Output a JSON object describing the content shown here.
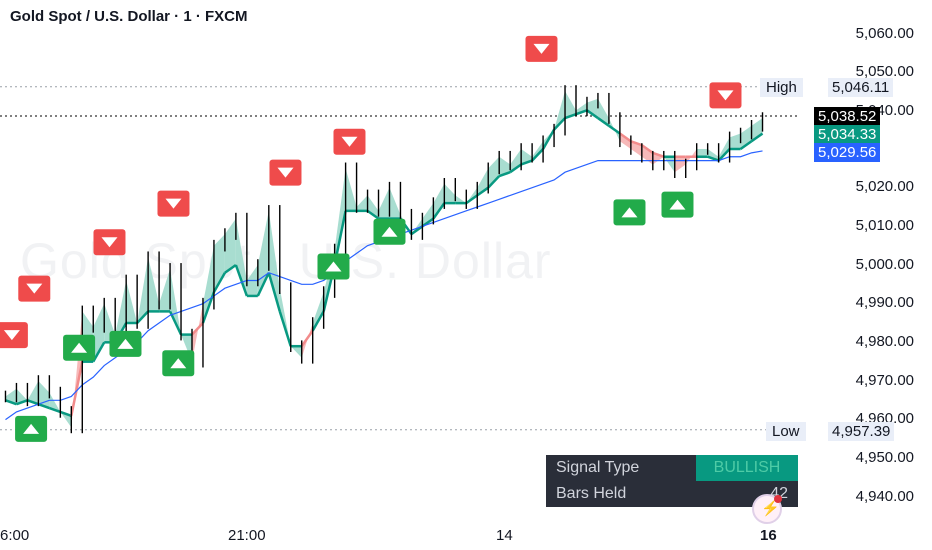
{
  "header": {
    "title": "Gold Spot / U.S. Dollar · 1 · FXCM"
  },
  "watermark": "Gold Spot · U.S. Dollar",
  "price_axis": {
    "ticks": [
      "5,060.00",
      "5,050.00",
      "5,040.00",
      "5,020.00",
      "5,010.00",
      "5,000.00",
      "4,990.00",
      "4,980.00",
      "4,970.00",
      "4,960.00",
      "4,950.00",
      "4,940.00"
    ],
    "tick_values": [
      5060,
      5050,
      5040,
      5020,
      5010,
      5000,
      4990,
      4980,
      4970,
      4960,
      4950,
      4940
    ]
  },
  "time_axis": {
    "labels": [
      "6:00",
      "21:00",
      "14",
      "16"
    ]
  },
  "price_tags": {
    "high_label": "High",
    "high_value": "5,046.11",
    "last": "5,038.52",
    "trail": "5,034.33",
    "ma": "5,029.56",
    "low_label": "Low",
    "low_value": "4,957.39"
  },
  "signal_table": {
    "type_label": "Signal Type",
    "type_value": "BULLISH",
    "bars_label": "Bars Held",
    "bars_value": "42"
  },
  "colors": {
    "up": "#22ab4a",
    "down": "#ef4b4b",
    "bull_fill": "#a8ddd0",
    "bear_fill": "#f7b9b9",
    "trail": "#089981",
    "ma": "#2962ff",
    "candle": "#000000"
  },
  "chart_data": {
    "type": "line",
    "ylim": [
      4935,
      5065
    ],
    "series": [
      {
        "values": [
          4966,
          4968,
          4965,
          4970,
          4967,
          4962,
          4958,
          4988,
          4984,
          4990,
          4982,
          4996,
          4985,
          5002,
          4990,
          4999,
          4982,
          4975,
          4990,
          5005,
          5008,
          5012,
          4996,
          5000,
          5014,
          4994,
          4979,
          4976,
          4985,
          4993,
          5004,
          5025,
          5015,
          5018,
          5014,
          5020,
          5013,
          5008,
          5012,
          5016,
          5021,
          5018,
          5016,
          5020,
          5025,
          5028,
          5026,
          5030,
          5028,
          5032,
          5035,
          5045,
          5040,
          5042,
          5043,
          5038,
          5032,
          5030,
          5028,
          5026,
          5028,
          5024,
          5026,
          5030,
          5030,
          5028,
          5033,
          5034,
          5036,
          5038
        ]
      },
      {
        "values": [
          4965,
          4964,
          4965,
          4964,
          4963,
          4962,
          4961,
          4975,
          4975,
          4980,
          4980,
          4985,
          4985,
          4988,
          4988,
          4988,
          4982,
          4982,
          4985,
          4993,
          4998,
          5000,
          4992,
          4992,
          4998,
          4988,
          4979,
          4979,
          4983,
          4988,
          5000,
          5014,
          5014,
          5014,
          5012,
          5012,
          5012,
          5008,
          5010,
          5012,
          5016,
          5016,
          5016,
          5018,
          5020,
          5023,
          5024,
          5026,
          5027,
          5030,
          5035,
          5038,
          5039,
          5040,
          5038,
          5036,
          5034,
          5032,
          5031,
          5029,
          5028,
          5028,
          5028,
          5028,
          5028,
          5027,
          5030,
          5030,
          5032,
          5034
        ]
      },
      {
        "values": [
          4960,
          4962,
          4963,
          4964,
          4965,
          4965,
          4966,
          4969,
          4971,
          4974,
          4976,
          4978,
          4980,
          4983,
          4985,
          4987,
          4988,
          4989,
          4990,
          4992,
          4994,
          4995,
          4996,
          4996,
          4998,
          4997,
          4996,
          4995,
          4995,
          4996,
          4998,
          5001,
          5003,
          5005,
          5006,
          5007,
          5008,
          5009,
          5010,
          5011,
          5012,
          5013,
          5014,
          5015,
          5016,
          5017,
          5018,
          5019,
          5020,
          5021,
          5022,
          5024,
          5025,
          5026,
          5027,
          5027,
          5027,
          5027,
          5027,
          5027,
          5027,
          5027,
          5027,
          5027,
          5027,
          5027,
          5028,
          5028,
          5029,
          5029.5
        ]
      }
    ],
    "down_markers": [
      [
        0.4,
        4978
      ],
      [
        1.8,
        4990
      ],
      [
        6.5,
        5002
      ],
      [
        10.5,
        5012
      ],
      [
        17.5,
        5020
      ],
      [
        21.5,
        5028
      ],
      [
        33.5,
        5052
      ],
      [
        45,
        5040
      ]
    ],
    "up_markers": [
      [
        1.6,
        4962
      ],
      [
        4.6,
        4983
      ],
      [
        7.5,
        4984
      ],
      [
        10.8,
        4979
      ],
      [
        20.5,
        5004
      ],
      [
        24,
        5013
      ],
      [
        39,
        5018
      ],
      [
        42,
        5020
      ]
    ]
  }
}
